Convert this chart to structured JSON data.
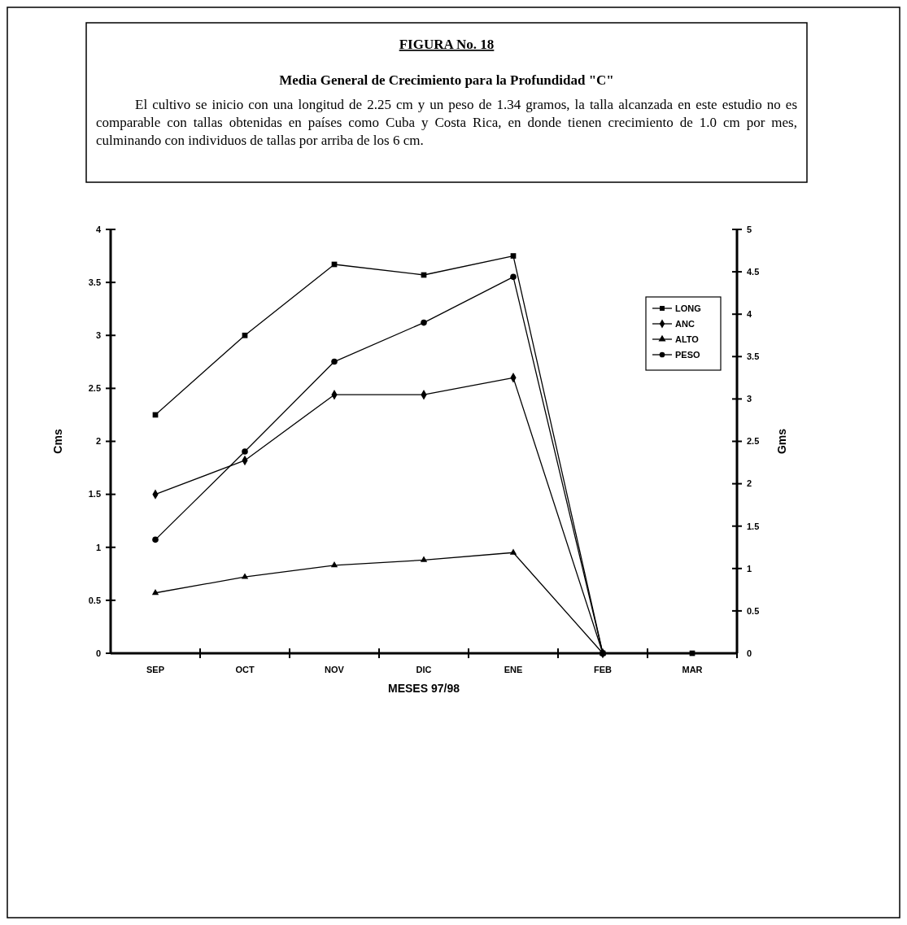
{
  "chart_data": {
    "type": "line",
    "title": "FIGURA No. 18",
    "subtitle": "Media General de Crecimiento para la Profundidad \"C\"",
    "annotations": [
      "El cultivo se inicio con una longitud de 2.25 cm y un peso de 1.34 gramos, la talla alcanzada en este estudio no es comparable con tallas obtenidas en países como Cuba y Costa Rica, en donde tienen crecimiento de 1.0 cm por mes, culminando con individuos de tallas por arriba de los 6 cm."
    ],
    "categories": [
      "SEP",
      "OCT",
      "NOV",
      "DIC",
      "ENE",
      "FEB",
      "MAR"
    ],
    "series": [
      {
        "name": "LONG",
        "color": "#000000",
        "marker": "square",
        "values": [
          2.25,
          3.0,
          3.67,
          3.57,
          3.75,
          0,
          0
        ]
      },
      {
        "name": "ANC",
        "color": "#000000",
        "marker": "diamond",
        "values": [
          1.5,
          1.82,
          2.44,
          2.44,
          2.6,
          0,
          null
        ]
      },
      {
        "name": "ALTO",
        "color": "#000000",
        "marker": "triangle",
        "values": [
          0.57,
          0.72,
          0.83,
          0.88,
          0.95,
          0,
          null
        ]
      },
      {
        "name": "PESO",
        "color": "#000000",
        "marker": "circle",
        "axis": "y2",
        "values": [
          1.34,
          2.38,
          3.44,
          3.9,
          4.44,
          0,
          null
        ]
      }
    ],
    "xlabel": "MESES 97/98",
    "ylabel": "Cms",
    "y2label": "Gms",
    "ylim": [
      0,
      4
    ],
    "yticks": [
      0,
      0.5,
      1,
      1.5,
      2,
      2.5,
      3,
      3.5,
      4
    ],
    "y2lim": [
      0,
      5
    ],
    "y2ticks": [
      0,
      0.5,
      1,
      1.5,
      2,
      2.5,
      3,
      3.5,
      4,
      4.5,
      5
    ],
    "legend": "top right",
    "grid": false
  }
}
